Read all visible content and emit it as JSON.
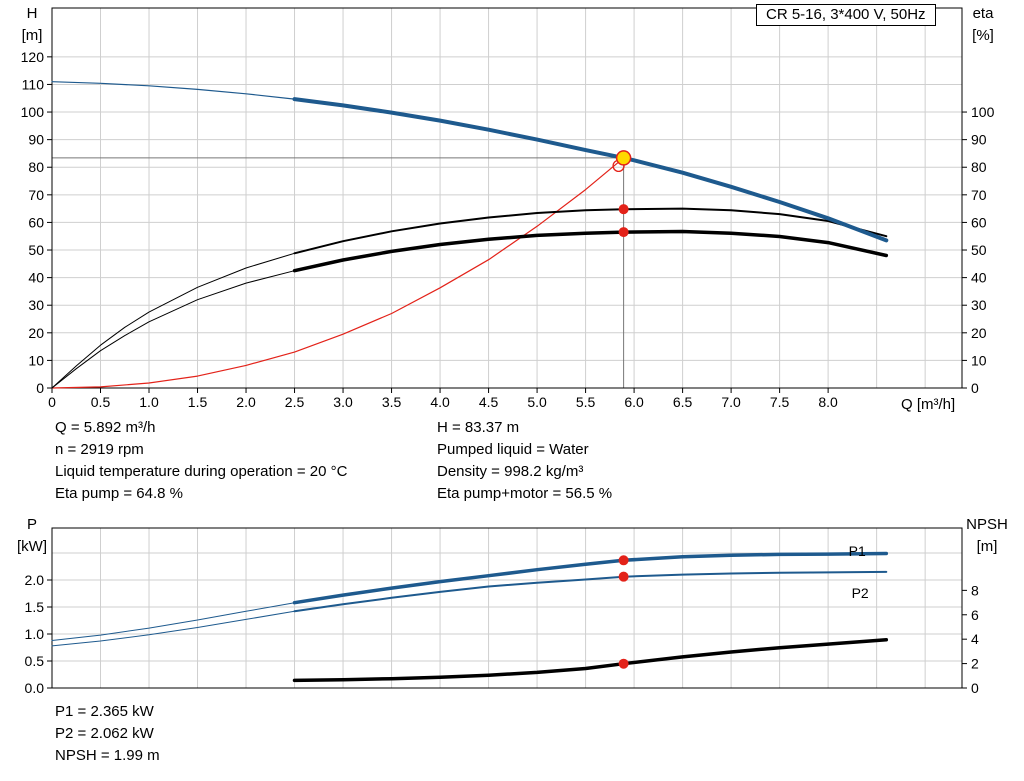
{
  "colors": {
    "blue": "#1e5a8e",
    "red": "#e32219",
    "yellow": "#ffd800",
    "black": "#000000",
    "grid": "#cfcfcf",
    "crosshair": "#777777"
  },
  "readouts": {
    "top_left": [
      "Q = 5.892 m³/h",
      "n = 2919 rpm",
      "Liquid temperature during operation = 20 °C",
      "Eta pump = 64.8 %"
    ],
    "top_right": [
      "H = 83.37 m",
      "Pumped liquid = Water",
      "Density = 998.2 kg/m³",
      "Eta pump+motor = 56.5 %"
    ],
    "bottom": [
      "P1 = 2.365 kW",
      "P2 = 2.062 kW",
      "NPSH = 1.99 m"
    ]
  },
  "chart_data": [
    {
      "type": "line",
      "title": "CR 5-16, 3*400 V, 50Hz",
      "x_axis": {
        "min": 0,
        "max": 9.38,
        "grid_from": 0.5,
        "grid_to": 9.0,
        "grid_step": 0.5,
        "label": "Q [m³/h]",
        "ticks": [
          [
            0,
            "0"
          ],
          [
            0.5,
            "0.5"
          ],
          [
            1,
            "1.0"
          ],
          [
            1.5,
            "1.5"
          ],
          [
            2,
            "2.0"
          ],
          [
            2.5,
            "2.5"
          ],
          [
            3,
            "3.0"
          ],
          [
            3.5,
            "3.5"
          ],
          [
            4,
            "4.0"
          ],
          [
            4.5,
            "4.5"
          ],
          [
            5,
            "5.0"
          ],
          [
            5.5,
            "5.5"
          ],
          [
            6,
            "6.0"
          ],
          [
            6.5,
            "6.5"
          ],
          [
            7,
            "7.0"
          ],
          [
            7.5,
            "7.5"
          ],
          [
            8,
            "8.0"
          ]
        ]
      },
      "y_left": {
        "min": 0,
        "max": 137.7,
        "label": "H",
        "unit": "[m]",
        "grid": [
          10,
          20,
          30,
          40,
          50,
          60,
          70,
          80,
          90,
          100,
          110,
          120
        ],
        "ticks": [
          [
            0,
            "0"
          ],
          [
            10,
            "10"
          ],
          [
            20,
            "20"
          ],
          [
            30,
            "30"
          ],
          [
            40,
            "40"
          ],
          [
            50,
            "50"
          ],
          [
            60,
            "60"
          ],
          [
            70,
            "70"
          ],
          [
            80,
            "80"
          ],
          [
            90,
            "90"
          ],
          [
            100,
            "100"
          ],
          [
            110,
            "110"
          ],
          [
            120,
            "120"
          ]
        ]
      },
      "y_right": {
        "min": 0,
        "max": 137.7,
        "label": "eta",
        "unit": "[%]",
        "ticks": [
          [
            0,
            "0"
          ],
          [
            10,
            "10"
          ],
          [
            20,
            "20"
          ],
          [
            30,
            "30"
          ],
          [
            40,
            "40"
          ],
          [
            50,
            "50"
          ],
          [
            60,
            "60"
          ],
          [
            70,
            "70"
          ],
          [
            80,
            "80"
          ],
          [
            90,
            "90"
          ],
          [
            100,
            "100"
          ]
        ]
      },
      "crosshair": {
        "q": 5.892,
        "v": 83.37
      },
      "series": [
        {
          "name": "system-curve",
          "axis": "left",
          "color": "red",
          "width": 1.2,
          "points": [
            [
              0,
              0
            ],
            [
              0.5,
              0.4
            ],
            [
              1,
              1.8
            ],
            [
              1.5,
              4.3
            ],
            [
              2,
              8.2
            ],
            [
              2.5,
              13
            ],
            [
              3,
              19.5
            ],
            [
              3.5,
              27
            ],
            [
              4,
              36.3
            ],
            [
              4.5,
              46.5
            ],
            [
              5,
              58.6
            ],
            [
              5.5,
              71.9
            ],
            [
              5.892,
              83.37
            ]
          ]
        },
        {
          "name": "eta-pump-curve",
          "axis": "right",
          "color": "black",
          "width": 2,
          "thin_width": 1,
          "bold_from": 2.5,
          "points": [
            [
              0,
              0
            ],
            [
              0.25,
              8
            ],
            [
              0.5,
              15.5
            ],
            [
              0.75,
              22
            ],
            [
              1,
              27.5
            ],
            [
              1.5,
              36.5
            ],
            [
              2,
              43.5
            ],
            [
              2.5,
              48.8
            ],
            [
              3,
              53.2
            ],
            [
              3.5,
              56.8
            ],
            [
              4,
              59.6
            ],
            [
              4.5,
              61.8
            ],
            [
              5,
              63.4
            ],
            [
              5.5,
              64.4
            ],
            [
              5.892,
              64.8
            ],
            [
              6.5,
              65
            ],
            [
              7,
              64.4
            ],
            [
              7.5,
              63
            ],
            [
              8,
              60.5
            ],
            [
              8.6,
              55
            ]
          ]
        },
        {
          "name": "eta-pump-motor-curve",
          "axis": "right",
          "color": "black",
          "width": 3.5,
          "thin_width": 1,
          "bold_from": 2.5,
          "points": [
            [
              0,
              0
            ],
            [
              0.25,
              7
            ],
            [
              0.5,
              13.5
            ],
            [
              0.75,
              19
            ],
            [
              1,
              24
            ],
            [
              1.5,
              32
            ],
            [
              2,
              38
            ],
            [
              2.5,
              42.5
            ],
            [
              3,
              46.4
            ],
            [
              3.5,
              49.5
            ],
            [
              4,
              52
            ],
            [
              4.5,
              53.9
            ],
            [
              5,
              55.3
            ],
            [
              5.5,
              56.1
            ],
            [
              5.892,
              56.5
            ],
            [
              6.5,
              56.7
            ],
            [
              7,
              56.1
            ],
            [
              7.5,
              54.9
            ],
            [
              8,
              52.7
            ],
            [
              8.6,
              48
            ]
          ]
        },
        {
          "name": "pump-head-curve",
          "axis": "left",
          "color": "blue",
          "width": 4,
          "thin_width": 1.2,
          "bold_from": 2.5,
          "points": [
            [
              0,
              111
            ],
            [
              0.5,
              110.4
            ],
            [
              1,
              109.5
            ],
            [
              1.5,
              108.2
            ],
            [
              2,
              106.6
            ],
            [
              2.5,
              104.7
            ],
            [
              3,
              102.4
            ],
            [
              3.5,
              99.8
            ],
            [
              4,
              96.9
            ],
            [
              4.5,
              93.6
            ],
            [
              5,
              90
            ],
            [
              5.5,
              86.2
            ],
            [
              5.892,
              83.37
            ],
            [
              6,
              82.5
            ],
            [
              6.5,
              78
            ],
            [
              7,
              72.9
            ],
            [
              7.5,
              67.4
            ],
            [
              8,
              61.5
            ],
            [
              8.6,
              53.5
            ]
          ]
        }
      ],
      "markers": [
        {
          "type": "ring",
          "q": 5.84,
          "v": 80.5,
          "axis": "left",
          "r": 5.5,
          "stroke": "red",
          "name": "system-duty-ring"
        },
        {
          "type": "dot",
          "q": 5.892,
          "v": 83.37,
          "axis": "left",
          "r": 7,
          "fill": "yellow",
          "stroke": "red",
          "name": "duty-point-marker"
        },
        {
          "type": "dot",
          "q": 5.892,
          "v": 64.8,
          "axis": "right",
          "r": 5,
          "fill": "red",
          "name": "eta-pump-duty-dot"
        },
        {
          "type": "dot",
          "q": 5.892,
          "v": 56.5,
          "axis": "right",
          "r": 5,
          "fill": "red",
          "name": "eta-pump-motor-duty-dot"
        }
      ]
    },
    {
      "type": "line",
      "title": "",
      "x_axis": {
        "min": 0,
        "max": 9.38,
        "grid_from": 0.5,
        "grid_to": 9.0,
        "grid_step": 0.5,
        "label": "",
        "ticks": []
      },
      "y_left": {
        "min": 0,
        "max": 2.963,
        "label": "P",
        "unit": "[kW]",
        "grid": [
          0.5,
          1,
          1.5,
          2,
          2.5
        ],
        "ticks": [
          [
            0,
            "0.0"
          ],
          [
            0.5,
            "0.5"
          ],
          [
            1,
            "1.0"
          ],
          [
            1.5,
            "1.5"
          ],
          [
            2,
            "2.0"
          ]
        ]
      },
      "y_right": {
        "min": 0,
        "max": 13.11,
        "label": "NPSH",
        "unit": "[m]",
        "ticks": [
          [
            0,
            "0"
          ],
          [
            2,
            "2"
          ],
          [
            4,
            "4"
          ],
          [
            6,
            "6"
          ],
          [
            8,
            "8"
          ]
        ]
      },
      "series": [
        {
          "name": "npsh-curve",
          "axis": "right",
          "color": "black",
          "width": 3.5,
          "points": [
            [
              2.5,
              0.62
            ],
            [
              3,
              0.68
            ],
            [
              3.5,
              0.76
            ],
            [
              4,
              0.88
            ],
            [
              4.5,
              1.05
            ],
            [
              5,
              1.28
            ],
            [
              5.5,
              1.6
            ],
            [
              5.892,
              1.99
            ],
            [
              6.5,
              2.55
            ],
            [
              7,
              2.95
            ],
            [
              7.5,
              3.3
            ],
            [
              8,
              3.6
            ],
            [
              8.6,
              3.95
            ]
          ]
        },
        {
          "name": "p2-curve",
          "axis": "left",
          "color": "blue",
          "width": 2,
          "thin_width": 1,
          "bold_from": 2.5,
          "points": [
            [
              0,
              0.78
            ],
            [
              0.5,
              0.87
            ],
            [
              1,
              0.985
            ],
            [
              1.5,
              1.12
            ],
            [
              2,
              1.27
            ],
            [
              2.5,
              1.42
            ],
            [
              3,
              1.55
            ],
            [
              3.5,
              1.67
            ],
            [
              4,
              1.78
            ],
            [
              4.5,
              1.88
            ],
            [
              5,
              1.95
            ],
            [
              5.5,
              2.01
            ],
            [
              5.892,
              2.062
            ],
            [
              6.5,
              2.1
            ],
            [
              7,
              2.12
            ],
            [
              7.5,
              2.135
            ],
            [
              8,
              2.14
            ],
            [
              8.6,
              2.15
            ]
          ]
        },
        {
          "name": "p1-curve",
          "axis": "left",
          "color": "blue",
          "width": 3.5,
          "thin_width": 1,
          "bold_from": 2.5,
          "points": [
            [
              0,
              0.88
            ],
            [
              0.5,
              0.98
            ],
            [
              1,
              1.11
            ],
            [
              1.5,
              1.26
            ],
            [
              2,
              1.42
            ],
            [
              2.5,
              1.58
            ],
            [
              3,
              1.72
            ],
            [
              3.5,
              1.85
            ],
            [
              4,
              1.97
            ],
            [
              4.5,
              2.08
            ],
            [
              5,
              2.19
            ],
            [
              5.5,
              2.29
            ],
            [
              5.892,
              2.365
            ],
            [
              6.5,
              2.43
            ],
            [
              7,
              2.46
            ],
            [
              7.5,
              2.475
            ],
            [
              8,
              2.48
            ],
            [
              8.6,
              2.49
            ]
          ]
        }
      ],
      "markers": [
        {
          "type": "dot",
          "q": 5.892,
          "v": 2.365,
          "axis": "left",
          "r": 5,
          "fill": "red",
          "name": "p1-duty-dot"
        },
        {
          "type": "dot",
          "q": 5.892,
          "v": 2.062,
          "axis": "left",
          "r": 5,
          "fill": "red",
          "name": "p2-duty-dot"
        },
        {
          "type": "dot",
          "q": 5.892,
          "v": 1.99,
          "axis": "right",
          "r": 5,
          "fill": "red",
          "name": "npsh-duty-dot"
        },
        {
          "type": "text",
          "q": 8.3,
          "v": 2.44,
          "axis": "left",
          "text": "P1",
          "color": "blue",
          "name": "p1-curve-label"
        },
        {
          "type": "text",
          "q": 8.33,
          "v": 1.67,
          "axis": "left",
          "text": "P2",
          "color": "blue",
          "name": "p2-curve-label"
        }
      ]
    }
  ]
}
